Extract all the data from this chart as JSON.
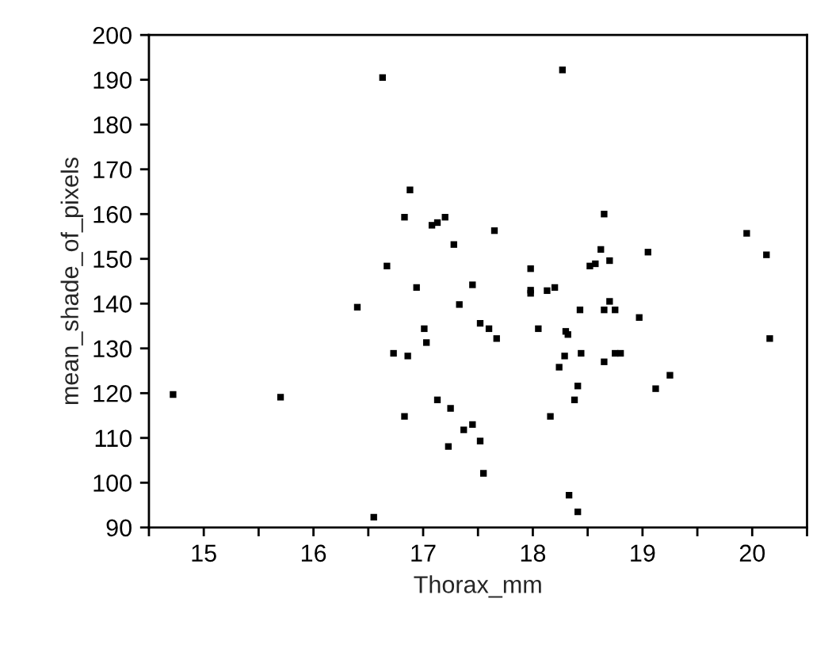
{
  "chart_data": {
    "type": "scatter",
    "xlabel": "Thorax_mm",
    "ylabel": "mean_shade_of_pixels",
    "series": [
      {
        "color": "#000000",
        "x": [
          16.63,
          16.88,
          16.83,
          17.08,
          17.13,
          17.2,
          17.28,
          16.67,
          16.94,
          17.45,
          16.4,
          17.33,
          17.01,
          18.27,
          18.65,
          17.65,
          19.95,
          20.13,
          18.62,
          19.05,
          18.52,
          18.57,
          18.7,
          17.98,
          17.98,
          17.98,
          18.13,
          18.2,
          18.7,
          18.43,
          18.65,
          18.75,
          18.97,
          17.52,
          17.6,
          17.67,
          18.05,
          18.3,
          18.32,
          20.16,
          17.03,
          16.73,
          16.86,
          14.72,
          15.7,
          17.13,
          17.25,
          16.83,
          17.37,
          17.45,
          17.23,
          16.55,
          18.44,
          18.29,
          18.24,
          18.65,
          18.75,
          18.8,
          19.25,
          19.12,
          18.41,
          18.38,
          18.16,
          17.52,
          17.55,
          18.33,
          18.41
        ],
        "values": [
          190.5,
          165.4,
          159.3,
          157.5,
          158.1,
          159.3,
          153.2,
          148.4,
          143.6,
          144.2,
          139.2,
          139.8,
          134.4,
          192.2,
          160.0,
          156.3,
          155.7,
          150.9,
          152.1,
          151.5,
          148.4,
          148.9,
          149.6,
          147.8,
          143.0,
          142.3,
          142.9,
          143.6,
          140.5,
          138.6,
          138.6,
          138.6,
          136.9,
          135.6,
          134.4,
          132.2,
          134.4,
          133.8,
          133.1,
          132.2,
          131.3,
          128.9,
          128.3,
          119.7,
          119.1,
          118.5,
          116.6,
          114.8,
          111.8,
          113.0,
          108.1,
          92.3,
          128.9,
          128.3,
          125.8,
          127.0,
          128.9,
          128.9,
          124.0,
          121.0,
          121.6,
          118.5,
          114.8,
          109.3,
          102.1,
          97.2,
          93.5
        ]
      }
    ],
    "xlim": [
      14.5,
      20.5
    ],
    "xticks": [
      {
        "value": 14.5,
        "label": null
      },
      15,
      {
        "value": 15.5,
        "label": null
      },
      16,
      {
        "value": 16.5,
        "label": null
      },
      17,
      {
        "value": 17.5,
        "label": null
      },
      18,
      {
        "value": 18.5,
        "label": null
      },
      19,
      {
        "value": 19.5,
        "label": null
      },
      20,
      {
        "value": 20.5,
        "label": null
      }
    ],
    "ylim": [
      90,
      200
    ],
    "yticks": [
      90,
      100,
      110,
      120,
      130,
      140,
      150,
      160,
      170,
      180,
      190,
      200
    ],
    "grid": false,
    "legend": false,
    "marker": "square"
  }
}
